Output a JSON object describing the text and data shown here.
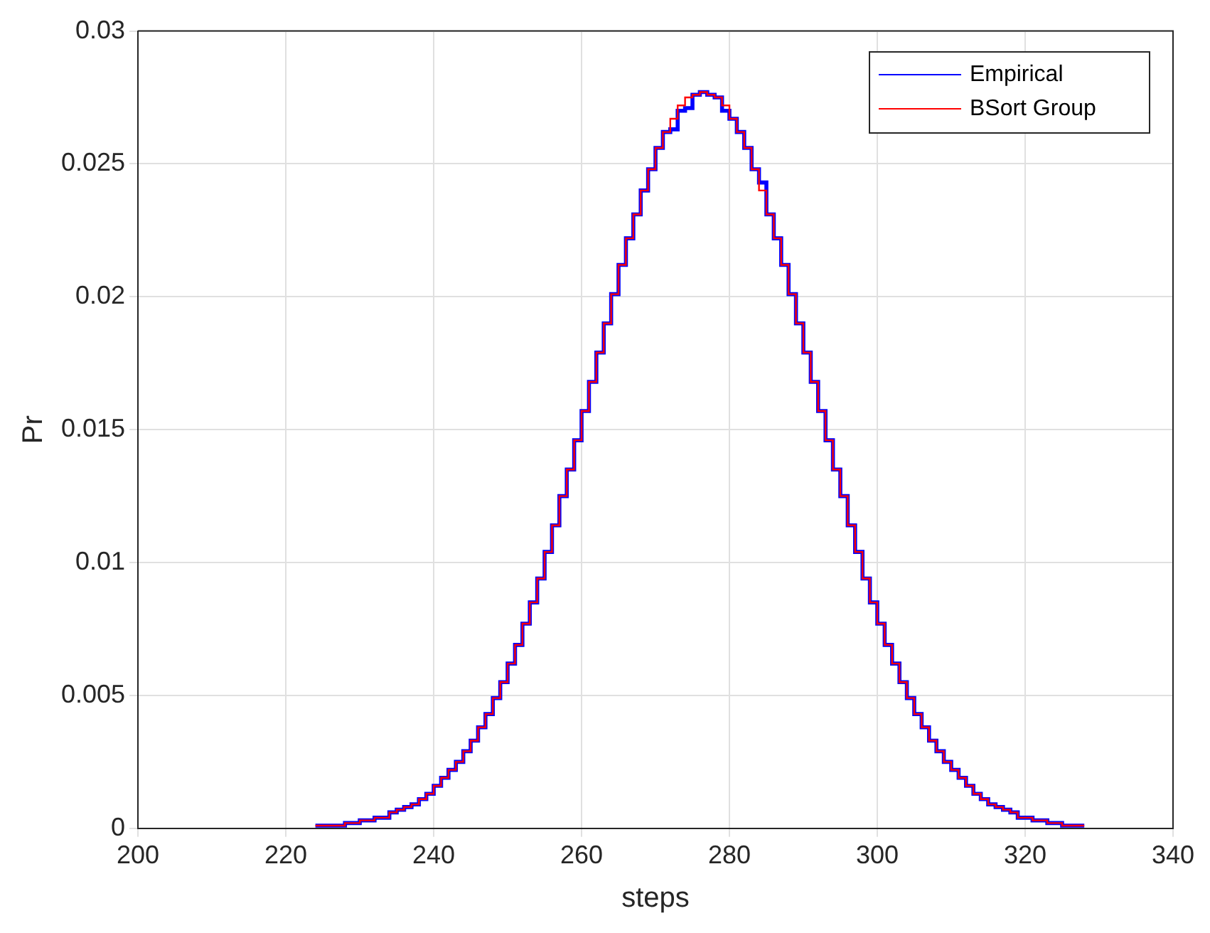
{
  "chart_data": {
    "type": "step",
    "xlabel": "steps",
    "ylabel": "Pr",
    "x": [
      224,
      225,
      226,
      227,
      228,
      229,
      230,
      231,
      232,
      233,
      234,
      235,
      236,
      237,
      238,
      239,
      240,
      241,
      242,
      243,
      244,
      245,
      246,
      247,
      248,
      249,
      250,
      251,
      252,
      253,
      254,
      255,
      256,
      257,
      258,
      259,
      260,
      261,
      262,
      263,
      264,
      265,
      266,
      267,
      268,
      269,
      270,
      271,
      272,
      273,
      274,
      275,
      276,
      277,
      278,
      279,
      280,
      281,
      282,
      283,
      284,
      285,
      286,
      287,
      288,
      289,
      290,
      291,
      292,
      293,
      294,
      295,
      296,
      297,
      298,
      299,
      300,
      301,
      302,
      303,
      304,
      305,
      306,
      307,
      308,
      309,
      310,
      311,
      312,
      313,
      314,
      315,
      316,
      317,
      318,
      319,
      320,
      321,
      322,
      323,
      324,
      325,
      326,
      327,
      328
    ],
    "series": [
      {
        "name": "Empirical",
        "color": "#0000ff",
        "values": [
          0.0001,
          0.0001,
          0.0001,
          0.0001,
          0.0002,
          0.0002,
          0.0003,
          0.0003,
          0.0004,
          0.0004,
          0.0006,
          0.0007,
          0.0008,
          0.0009,
          0.0011,
          0.0013,
          0.0016,
          0.0019,
          0.0022,
          0.0025,
          0.0029,
          0.0033,
          0.0038,
          0.0043,
          0.0049,
          0.0055,
          0.0062,
          0.0069,
          0.0077,
          0.0085,
          0.0094,
          0.0104,
          0.0114,
          0.0125,
          0.0135,
          0.0146,
          0.0157,
          0.0168,
          0.0179,
          0.019,
          0.0201,
          0.0212,
          0.0222,
          0.0231,
          0.024,
          0.0248,
          0.0256,
          0.0262,
          0.0263,
          0.027,
          0.0271,
          0.0276,
          0.0277,
          0.0276,
          0.0275,
          0.027,
          0.0267,
          0.0262,
          0.0256,
          0.0248,
          0.0243,
          0.0231,
          0.0222,
          0.0212,
          0.0201,
          0.019,
          0.0179,
          0.0168,
          0.0157,
          0.0146,
          0.0135,
          0.0125,
          0.0114,
          0.0104,
          0.0094,
          0.0085,
          0.0077,
          0.0069,
          0.0062,
          0.0055,
          0.0049,
          0.0043,
          0.0038,
          0.0033,
          0.0029,
          0.0025,
          0.0022,
          0.0019,
          0.0016,
          0.0013,
          0.0011,
          0.0009,
          0.0008,
          0.0007,
          0.0006,
          0.0004,
          0.0004,
          0.0003,
          0.0003,
          0.0002,
          0.0002,
          0.0001,
          0.0001,
          0.0001,
          0.0001
        ]
      },
      {
        "name": "BSort Group",
        "color": "#ff0000",
        "values": [
          0.0001,
          0.0001,
          0.0001,
          0.0001,
          0.0002,
          0.0002,
          0.0003,
          0.0003,
          0.0004,
          0.0004,
          0.0006,
          0.0007,
          0.0008,
          0.0009,
          0.0011,
          0.0013,
          0.0016,
          0.0019,
          0.0022,
          0.0025,
          0.0029,
          0.0033,
          0.0038,
          0.0043,
          0.0049,
          0.0055,
          0.0062,
          0.0069,
          0.0077,
          0.0085,
          0.0094,
          0.0104,
          0.0114,
          0.0125,
          0.0135,
          0.0146,
          0.0157,
          0.0168,
          0.0179,
          0.019,
          0.0201,
          0.0212,
          0.0222,
          0.0231,
          0.024,
          0.0248,
          0.0256,
          0.0262,
          0.0267,
          0.0272,
          0.0275,
          0.0276,
          0.0277,
          0.0276,
          0.0275,
          0.0272,
          0.0267,
          0.0262,
          0.0256,
          0.0248,
          0.024,
          0.0231,
          0.0222,
          0.0212,
          0.0201,
          0.019,
          0.0179,
          0.0168,
          0.0157,
          0.0146,
          0.0135,
          0.0125,
          0.0114,
          0.0104,
          0.0094,
          0.0085,
          0.0077,
          0.0069,
          0.0062,
          0.0055,
          0.0049,
          0.0043,
          0.0038,
          0.0033,
          0.0029,
          0.0025,
          0.0022,
          0.0019,
          0.0016,
          0.0013,
          0.0011,
          0.0009,
          0.0008,
          0.0007,
          0.0006,
          0.0004,
          0.0004,
          0.0003,
          0.0003,
          0.0002,
          0.0002,
          0.0001,
          0.0001,
          0.0001,
          0.0001
        ]
      }
    ],
    "xlim": [
      200,
      340
    ],
    "xticks": [
      200,
      220,
      240,
      260,
      280,
      300,
      320,
      340
    ],
    "ylim": [
      0,
      0.03
    ],
    "yticks": [
      0,
      0.005,
      0.01,
      0.015,
      0.02,
      0.025,
      0.03
    ],
    "grid": true,
    "legend": "top right"
  }
}
